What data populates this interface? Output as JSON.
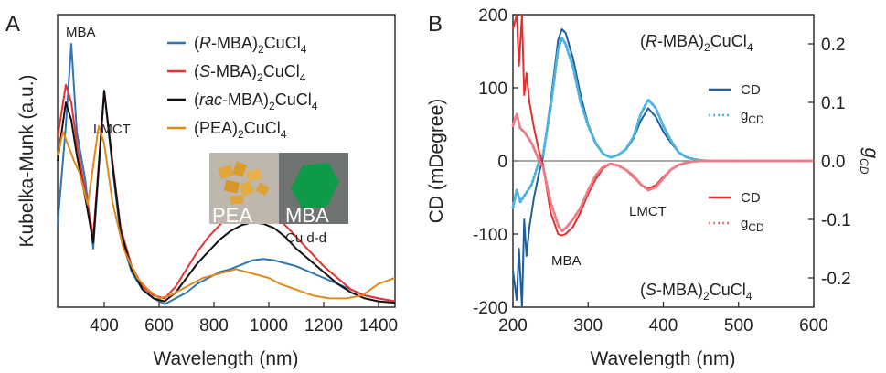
{
  "chart_data": [
    {
      "panel": "A",
      "type": "line",
      "xlabel": "Wavelength (nm)",
      "ylabel": "Kubelka-Munk (a.u.)",
      "xlim": [
        230,
        1460
      ],
      "ylim": [
        0,
        1.0
      ],
      "x_ticks": [
        400,
        600,
        800,
        1000,
        1200,
        1400
      ],
      "legend_position": "top-right",
      "series": [
        {
          "name_parts": [
            "(",
            "R",
            "-MBA)",
            "2",
            "CuCl",
            "4"
          ],
          "color": "#2e75b6",
          "x": [
            230,
            260,
            280,
            300,
            330,
            360,
            400,
            430,
            460,
            500,
            540,
            580,
            620,
            660,
            700,
            740,
            780,
            820,
            860,
            900,
            940,
            980,
            1020,
            1060,
            1100,
            1150,
            1200,
            1250,
            1300,
            1350,
            1400,
            1460
          ],
          "y": [
            0.28,
            0.62,
            0.9,
            0.6,
            0.44,
            0.2,
            0.74,
            0.48,
            0.24,
            0.12,
            0.06,
            0.03,
            0.01,
            0.03,
            0.05,
            0.08,
            0.1,
            0.12,
            0.13,
            0.145,
            0.16,
            0.165,
            0.16,
            0.15,
            0.14,
            0.12,
            0.1,
            0.08,
            0.06,
            0.04,
            0.03,
            0.02
          ]
        },
        {
          "name_parts": [
            "(",
            "S",
            "-MBA)",
            "2",
            "CuCl",
            "4"
          ],
          "color": "#e8302f",
          "x": [
            230,
            260,
            280,
            300,
            330,
            360,
            400,
            430,
            460,
            500,
            540,
            580,
            620,
            660,
            700,
            740,
            780,
            820,
            860,
            900,
            940,
            980,
            1020,
            1060,
            1100,
            1150,
            1200,
            1250,
            1300,
            1350,
            1400,
            1460
          ],
          "y": [
            0.58,
            0.76,
            0.7,
            0.56,
            0.4,
            0.24,
            0.74,
            0.5,
            0.27,
            0.14,
            0.07,
            0.04,
            0.03,
            0.07,
            0.13,
            0.19,
            0.24,
            0.28,
            0.31,
            0.34,
            0.34,
            0.33,
            0.31,
            0.28,
            0.24,
            0.19,
            0.14,
            0.1,
            0.06,
            0.04,
            0.03,
            0.02
          ]
        },
        {
          "name_parts": [
            "(",
            "rac",
            "-MBA)",
            "2",
            "CuCl",
            "4"
          ],
          "color": "#111111",
          "x": [
            230,
            260,
            280,
            300,
            330,
            360,
            400,
            430,
            460,
            500,
            540,
            580,
            620,
            660,
            700,
            740,
            780,
            820,
            860,
            900,
            940,
            980,
            1020,
            1060,
            1100,
            1150,
            1200,
            1250,
            1300,
            1350,
            1400,
            1460
          ],
          "y": [
            0.5,
            0.7,
            0.64,
            0.52,
            0.38,
            0.22,
            0.74,
            0.49,
            0.26,
            0.13,
            0.06,
            0.03,
            0.02,
            0.05,
            0.1,
            0.15,
            0.19,
            0.23,
            0.26,
            0.28,
            0.29,
            0.285,
            0.27,
            0.24,
            0.2,
            0.16,
            0.12,
            0.08,
            0.05,
            0.03,
            0.02,
            0.015
          ]
        },
        {
          "name_parts": [
            "(PEA)",
            "2",
            "CuCl",
            "4"
          ],
          "color": "#e08a1e",
          "x": [
            230,
            250,
            270,
            290,
            310,
            340,
            380,
            400,
            430,
            470,
            520,
            560,
            600,
            640,
            680,
            720,
            760,
            800,
            840,
            880,
            920,
            960,
            1000,
            1040,
            1100,
            1160,
            1220,
            1280,
            1340,
            1400,
            1460
          ],
          "y": [
            0.52,
            0.6,
            0.55,
            0.5,
            0.46,
            0.35,
            0.62,
            0.56,
            0.36,
            0.2,
            0.1,
            0.06,
            0.03,
            0.04,
            0.06,
            0.08,
            0.1,
            0.11,
            0.12,
            0.13,
            0.12,
            0.11,
            0.1,
            0.08,
            0.06,
            0.04,
            0.03,
            0.03,
            0.04,
            0.08,
            0.1
          ]
        }
      ],
      "annotations": {
        "mba": "MBA",
        "lmct": "LMCT",
        "cudd": "Cu d-d",
        "inset_left": "PEA",
        "inset_right": "MBA"
      }
    },
    {
      "panel": "B",
      "type": "line",
      "xlabel": "Wavelength (nm)",
      "ylabel": "CD (mDegree)",
      "y2label_main": "g",
      "y2label_sub": "CD",
      "xlim": [
        200,
        600
      ],
      "ylim": [
        -200,
        200
      ],
      "y2lim": [
        -0.25,
        0.25
      ],
      "x_ticks": [
        200,
        300,
        400,
        500,
        600
      ],
      "y_ticks": [
        -200,
        -100,
        0,
        100,
        200
      ],
      "y2_ticks": [
        -0.2,
        -0.1,
        0.0,
        0.1,
        0.2
      ],
      "y2_tick_labels": [
        "-0.2",
        "-0.1",
        "0.0",
        "0.1",
        "0.2"
      ],
      "series": [
        {
          "name": "CD",
          "group": "R",
          "color": "#1f5f99",
          "style": "solid",
          "x": [
            200,
            205,
            208,
            212,
            215,
            218,
            222,
            228,
            235,
            240,
            250,
            260,
            265,
            270,
            280,
            290,
            300,
            310,
            320,
            330,
            340,
            350,
            360,
            370,
            380,
            390,
            400,
            410,
            420,
            430,
            440,
            450,
            460,
            470,
            480,
            500,
            550,
            600
          ],
          "y": [
            -150,
            -190,
            -120,
            -200,
            -80,
            -130,
            -90,
            -50,
            -15,
            5,
            80,
            165,
            180,
            175,
            140,
            90,
            50,
            25,
            10,
            5,
            8,
            15,
            30,
            55,
            72,
            60,
            40,
            25,
            12,
            5,
            2,
            1,
            0,
            0,
            0,
            0,
            0,
            0
          ]
        },
        {
          "name": "g",
          "sub": "CD",
          "group": "R",
          "color": "#4fb3e0",
          "style": "dotted",
          "x": [
            200,
            205,
            210,
            215,
            220,
            225,
            230,
            235,
            240,
            250,
            260,
            265,
            270,
            280,
            290,
            300,
            310,
            320,
            330,
            340,
            350,
            360,
            370,
            380,
            390,
            400,
            410,
            420,
            430,
            440,
            450,
            460,
            470,
            480,
            500,
            550,
            600
          ],
          "y": [
            -0.08,
            -0.05,
            -0.07,
            -0.06,
            -0.05,
            -0.04,
            -0.02,
            0.0,
            0.01,
            0.09,
            0.19,
            0.21,
            0.2,
            0.16,
            0.1,
            0.06,
            0.03,
            0.012,
            0.006,
            0.01,
            0.02,
            0.04,
            0.08,
            0.105,
            0.09,
            0.06,
            0.035,
            0.015,
            0.007,
            0.003,
            0.001,
            0.0,
            0.0,
            0.0,
            0.0,
            0.0,
            0.0
          ]
        },
        {
          "name": "CD",
          "group": "S",
          "color": "#e0302f",
          "style": "solid",
          "x": [
            200,
            205,
            208,
            212,
            215,
            218,
            222,
            228,
            235,
            240,
            250,
            260,
            265,
            270,
            280,
            290,
            300,
            310,
            320,
            330,
            340,
            350,
            360,
            370,
            380,
            390,
            400,
            410,
            420,
            430,
            440,
            450,
            460,
            470,
            480,
            500,
            550,
            600
          ],
          "y": [
            180,
            200,
            130,
            200,
            90,
            120,
            80,
            45,
            12,
            -5,
            -70,
            -100,
            -102,
            -100,
            -90,
            -70,
            -45,
            -25,
            -10,
            -4,
            -6,
            -12,
            -22,
            -32,
            -38,
            -33,
            -22,
            -12,
            -6,
            -3,
            -1,
            0,
            0,
            0,
            0,
            0,
            0,
            0
          ]
        },
        {
          "name": "g",
          "sub": "CD",
          "group": "S",
          "color": "#f07b87",
          "style": "dotted",
          "x": [
            200,
            205,
            210,
            215,
            220,
            225,
            230,
            235,
            240,
            250,
            260,
            265,
            270,
            280,
            290,
            300,
            310,
            320,
            330,
            340,
            350,
            360,
            370,
            380,
            390,
            400,
            410,
            420,
            430,
            440,
            450,
            460,
            470,
            480,
            500,
            550,
            600
          ],
          "y": [
            0.06,
            0.08,
            0.055,
            0.05,
            0.04,
            0.03,
            0.015,
            0.0,
            -0.01,
            -0.07,
            -0.11,
            -0.12,
            -0.115,
            -0.1,
            -0.08,
            -0.05,
            -0.025,
            -0.01,
            -0.005,
            -0.008,
            -0.015,
            -0.025,
            -0.04,
            -0.05,
            -0.045,
            -0.03,
            -0.015,
            -0.007,
            -0.003,
            -0.001,
            0.0,
            0.0,
            0.0,
            0.0,
            0.0,
            0.0,
            0.0
          ]
        }
      ],
      "labels": {
        "r_compound_parts": [
          "(",
          "R",
          "-MBA)",
          "2",
          "CuCl",
          "4"
        ],
        "s_compound_parts": [
          "(",
          "S",
          "-MBA)",
          "2",
          "CuCl",
          "4"
        ],
        "mba": "MBA",
        "lmct": "LMCT",
        "legend_cd": "CD",
        "legend_g": "g",
        "legend_g_sub": "CD"
      }
    }
  ],
  "panel_labels": {
    "a": "A",
    "b": "B"
  },
  "colors": {
    "inset_left_bg": "#bdb7ad",
    "inset_right_bg": "#6f7371",
    "crystal_pea": "#e0a63a",
    "crystal_mba": "#0f9a48"
  }
}
